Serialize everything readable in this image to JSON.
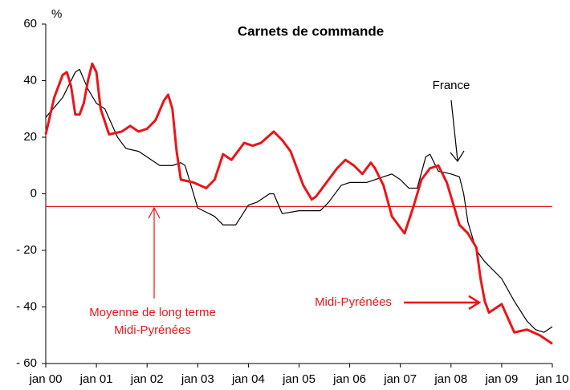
{
  "chart_data": {
    "type": "line",
    "title": "Carnets de commande",
    "y_label": "%",
    "xlim": [
      0,
      120
    ],
    "xticks": [
      {
        "value": 0,
        "label": "jan 00"
      },
      {
        "value": 12,
        "label": "jan 01"
      },
      {
        "value": 24,
        "label": "jan 02"
      },
      {
        "value": 36,
        "label": "jan 03"
      },
      {
        "value": 48,
        "label": "jan 04"
      },
      {
        "value": 60,
        "label": "jan 05"
      },
      {
        "value": 72,
        "label": "jan 06"
      },
      {
        "value": 84,
        "label": "jan 07"
      },
      {
        "value": 96,
        "label": "jan 08"
      },
      {
        "value": 108,
        "label": "jan 09"
      },
      {
        "value": 120,
        "label": "jan 10"
      }
    ],
    "ylim": [
      -60,
      60
    ],
    "yticks": [
      {
        "value": -60,
        "label": "- 60"
      },
      {
        "value": -40,
        "label": "- 40"
      },
      {
        "value": -20,
        "label": "- 20"
      },
      0,
      20,
      40,
      60
    ],
    "reference_line": {
      "value": -4.5,
      "color": "#e8161b"
    },
    "annotations": [
      "France",
      "Moyenne de long terme",
      "Midi-Pyrénées",
      "Midi-Pyrénées"
    ],
    "series": [
      {
        "name": "France",
        "color": "#000000",
        "width": 1.2,
        "x": [
          0,
          4,
          7,
          8,
          10,
          12,
          14,
          17,
          19,
          22,
          24,
          27,
          30,
          32,
          33,
          35,
          36,
          40,
          42,
          45,
          48,
          50,
          53,
          54,
          56,
          60,
          65,
          67,
          70,
          72,
          76,
          80,
          82,
          84,
          86,
          88,
          90,
          91,
          93,
          96,
          98,
          99,
          100,
          102,
          104,
          108,
          111,
          114,
          116,
          118,
          120
        ],
        "values": [
          27,
          34,
          43,
          44,
          37,
          32,
          30,
          20,
          16,
          15,
          13,
          10,
          10,
          11,
          10,
          0,
          -5,
          -8,
          -11,
          -11,
          -4,
          -3,
          0,
          0,
          -7,
          -6,
          -6,
          -3,
          3,
          4,
          4,
          6,
          7,
          5,
          2,
          2,
          13,
          14,
          8,
          7,
          6,
          0,
          -10,
          -20,
          -24,
          -30,
          -38,
          -45,
          -48,
          -49,
          -47
        ]
      },
      {
        "name": "Midi-Pyrénées",
        "color": "#e8161b",
        "width": 3,
        "x": [
          0,
          2,
          4,
          5,
          6,
          7,
          8,
          9,
          10,
          11,
          12,
          13,
          15,
          18,
          20,
          22,
          24,
          26,
          28,
          29,
          30,
          31,
          32,
          35,
          38,
          40,
          42,
          44,
          47,
          49,
          51,
          54,
          56,
          58,
          61,
          63,
          64,
          66,
          69,
          71,
          73,
          75,
          77,
          78,
          80,
          82,
          85,
          87,
          89,
          91,
          93,
          95,
          97,
          98,
          100,
          102,
          103,
          104,
          105,
          107,
          108,
          111,
          114,
          117,
          120
        ],
        "values": [
          21,
          34,
          42,
          43,
          38,
          28,
          28,
          32,
          40,
          46,
          43,
          30,
          21,
          22,
          24,
          22,
          23,
          26,
          33,
          35,
          30,
          15,
          5,
          4,
          2,
          5,
          14,
          12,
          18,
          17,
          18,
          22,
          19,
          15,
          3,
          -2,
          -1,
          3,
          9,
          12,
          10,
          7,
          11,
          9,
          3,
          -8,
          -14,
          -5,
          5,
          9,
          10,
          4,
          -6,
          -11,
          -14,
          -19,
          -30,
          -38,
          -42,
          -40,
          -39,
          -49,
          -48,
          -50,
          -53
        ]
      }
    ]
  }
}
